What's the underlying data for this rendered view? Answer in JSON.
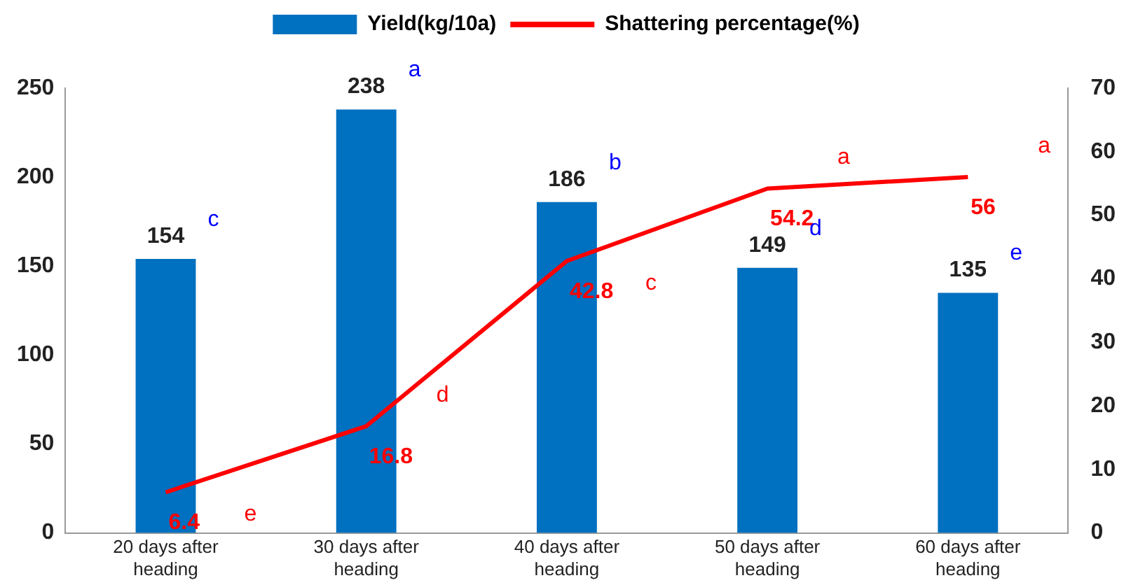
{
  "chart_data": {
    "type": "bar",
    "categories": [
      "20 days after heading",
      "30 days after heading",
      "40 days after heading",
      "50 days after heading",
      "60 days after heading"
    ],
    "series": [
      {
        "name": "Yield(kg/10a)",
        "color": "#0070c0",
        "values": [
          154,
          238,
          186,
          149,
          135
        ]
      },
      {
        "name": "Shattering percentage(%)",
        "type": "line",
        "axis": "y2",
        "color": "#ff0000",
        "values": [
          6.4,
          16.8,
          42.8,
          54.2,
          56
        ]
      }
    ],
    "ylim": [
      0,
      250
    ],
    "yticks": [
      0,
      50,
      100,
      150,
      200,
      250
    ],
    "y2lim": [
      0,
      70
    ],
    "y2ticks": [
      0,
      10,
      20,
      30,
      40,
      50,
      60,
      70
    ],
    "data_labels": true,
    "grid": false,
    "legend": "top",
    "marker": "none",
    "line_style": "solid",
    "annotations": [
      "c",
      "a",
      "b",
      "d",
      "e",
      "e",
      "d",
      "c",
      "a",
      "a"
    ]
  }
}
